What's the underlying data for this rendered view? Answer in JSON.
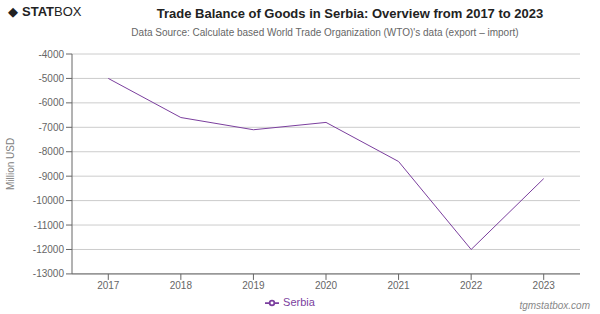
{
  "chart_data": {
    "type": "line",
    "title": "Trade Balance of Goods in Serbia: Overview from 2017 to 2023",
    "subtitle": "Data Source: Calculate based World Trade Organization (WTO)'s data (export – import)",
    "y_label": "Million USD",
    "x": [
      2017,
      2018,
      2019,
      2020,
      2021,
      2022,
      2023
    ],
    "series": [
      {
        "name": "Serbia",
        "color": "#7B3F9E",
        "values": [
          -5000,
          -6600,
          -7100,
          -6800,
          -8400,
          -12000,
          -9100
        ]
      }
    ],
    "xlim": [
      2016.5,
      2023.5
    ],
    "xticks": [
      2017,
      2018,
      2019,
      2020,
      2021,
      2022,
      2023
    ],
    "ylim": [
      -13000,
      -4000
    ],
    "yticks": [
      -4000,
      -5000,
      -6000,
      -7000,
      -8000,
      -9000,
      -10000,
      -11000,
      -12000,
      -13000
    ],
    "grid": true,
    "legend": "bottom",
    "annotations": [
      "◆",
      "STAT",
      "BOX",
      "tgmstatbox.com"
    ]
  }
}
